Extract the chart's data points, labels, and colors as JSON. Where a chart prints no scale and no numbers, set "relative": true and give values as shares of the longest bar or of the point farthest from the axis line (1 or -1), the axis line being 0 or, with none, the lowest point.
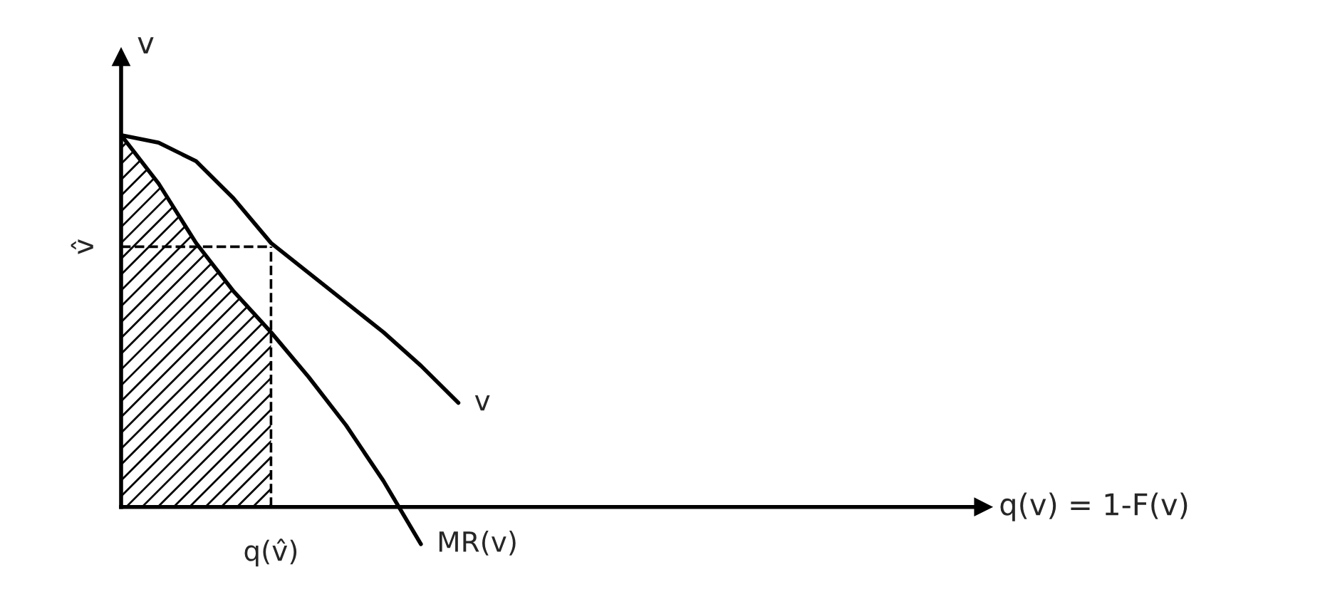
{
  "chart_data": {
    "type": "line",
    "relative": true,
    "xlabel": "q(v) = 1-F(v)",
    "ylabel": "v",
    "categories": [
      null,
      null,
      null,
      null,
      null,
      null,
      null,
      null,
      null,
      null,
      null,
      null,
      null,
      null,
      null,
      null,
      null,
      null,
      null,
      null,
      null,
      null,
      null,
      null
    ],
    "annotations": [
      "q(v̂)",
      "v̂"
    ],
    "series": [
      {
        "type": "area",
        "color": "#000000",
        "values": [
          1,
          0.87,
          0.71,
          0.58,
          0.47,
          null,
          null,
          null,
          null,
          null,
          null,
          null,
          null,
          null,
          null,
          null,
          null,
          null,
          null,
          null,
          null,
          null,
          null,
          null
        ]
      },
      {
        "name": "v",
        "color": "#000000",
        "values": [
          1,
          0.98,
          0.93,
          0.83,
          0.71,
          0.63,
          0.55,
          0.47,
          0.38,
          0.28,
          null,
          null,
          null,
          null,
          null,
          null,
          null,
          null,
          null,
          null,
          null,
          null,
          null,
          null
        ]
      },
      {
        "name": "MR(v)",
        "color": "#000000",
        "values": [
          1,
          0.87,
          0.71,
          0.58,
          0.47,
          0.35,
          0.22,
          0.07,
          -0.1,
          null,
          null,
          null,
          null,
          null,
          null,
          null,
          null,
          null,
          null,
          null,
          null,
          null,
          null,
          null
        ]
      },
      {
        "color": "#000000",
        "line_style": "dashed",
        "values": [
          0.7,
          0.7,
          0.7,
          0.7,
          0.7,
          null,
          null,
          null,
          null,
          null,
          null,
          null,
          null,
          null,
          null,
          null,
          null,
          null,
          null,
          null,
          null,
          null,
          null,
          null
        ]
      }
    ]
  }
}
